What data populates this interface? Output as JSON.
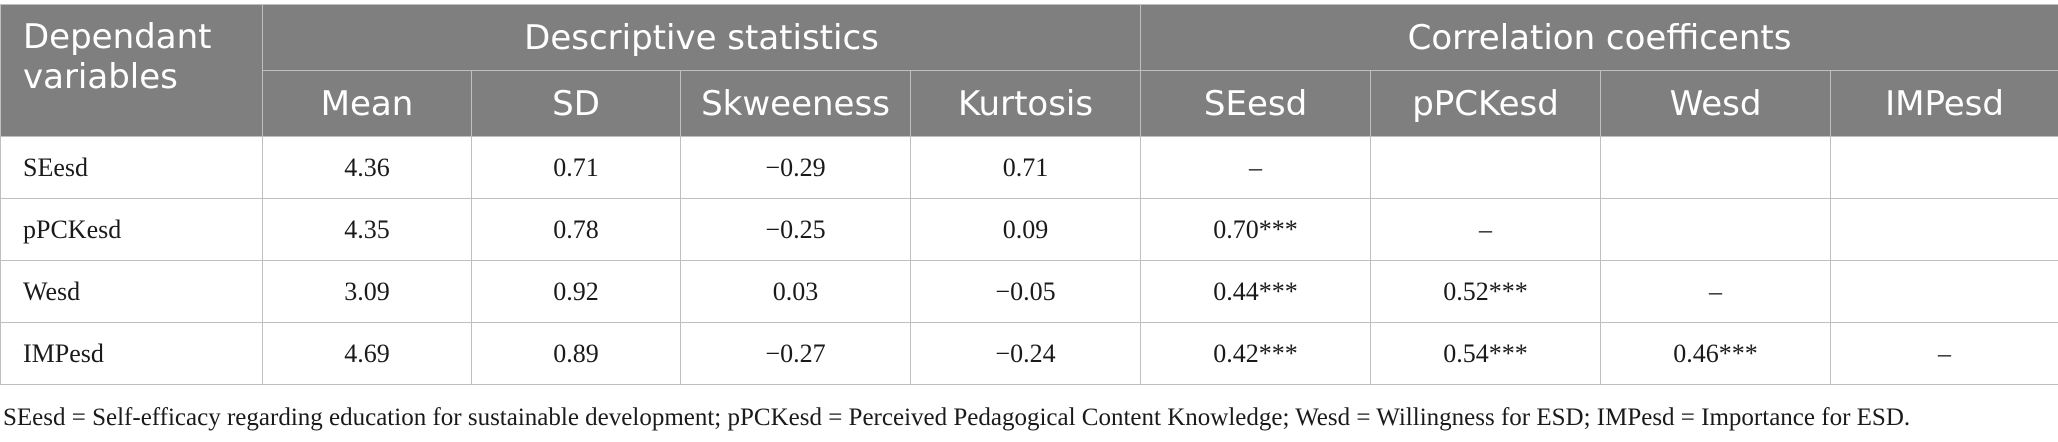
{
  "table": {
    "corner_label": "Dependant variables",
    "group_headers": [
      "Descriptive statistics",
      "Correlation coefficents"
    ],
    "column_headers": [
      "Mean",
      "SD",
      "Skweeness",
      "Kurtosis",
      "SEesd",
      "pPCKesd",
      "Wesd",
      "IMPesd"
    ],
    "rows": [
      {
        "label": "SEesd",
        "cells": [
          "4.36",
          "0.71",
          "−0.29",
          "0.71",
          "–",
          "",
          "",
          ""
        ]
      },
      {
        "label": "pPCKesd",
        "cells": [
          "4.35",
          "0.78",
          "−0.25",
          "0.09",
          "0.70***",
          "–",
          "",
          ""
        ]
      },
      {
        "label": "Wesd",
        "cells": [
          "3.09",
          "0.92",
          "0.03",
          "−0.05",
          "0.44***",
          "0.52***",
          "–",
          ""
        ]
      },
      {
        "label": "IMPesd",
        "cells": [
          "4.69",
          "0.89",
          "−0.27",
          "−0.24",
          "0.42***",
          "0.54***",
          "0.46***",
          "–"
        ]
      }
    ]
  },
  "footnote": "SEesd = Self-efficacy regarding education for sustainable development; pPCKesd = Perceived Pedagogical Content Knowledge; Wesd = Willingness for ESD; IMPesd = Importance for ESD.",
  "colors": {
    "header_bg": "#7f7f7f",
    "header_text": "#ffffff",
    "border": "#bfbfbf"
  }
}
